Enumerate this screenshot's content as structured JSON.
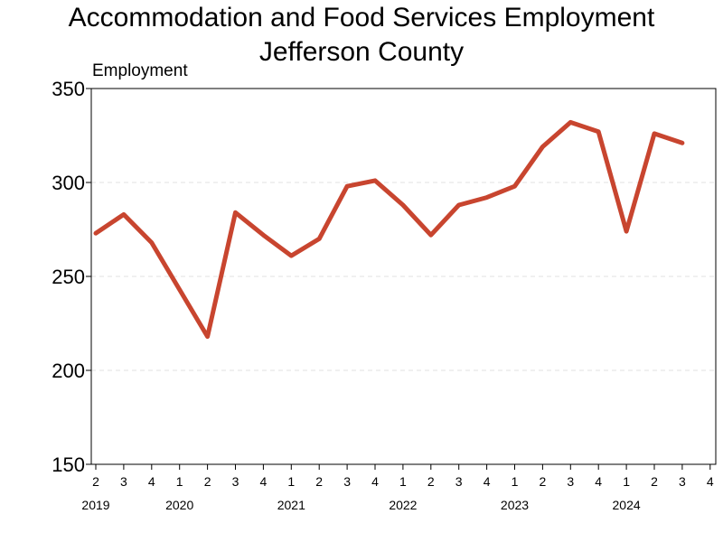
{
  "chart_data": {
    "type": "line",
    "title": "Accommodation and Food Services Employment",
    "subtitle": "Jefferson County",
    "ylabel": "Employment",
    "xlabel": "",
    "ylim": [
      150,
      350
    ],
    "yticks": [
      150,
      200,
      250,
      300,
      350
    ],
    "grid": "horizontal-dashed",
    "quarter_ticks": [
      "2",
      "3",
      "4",
      "1",
      "2",
      "3",
      "4",
      "1",
      "2",
      "3",
      "4",
      "1",
      "2",
      "3",
      "4",
      "1",
      "2",
      "3",
      "4",
      "1",
      "2",
      "3",
      "4"
    ],
    "year_labels": [
      {
        "year": "2019",
        "tick_index": 0
      },
      {
        "year": "2020",
        "tick_index": 3
      },
      {
        "year": "2021",
        "tick_index": 7
      },
      {
        "year": "2022",
        "tick_index": 11
      },
      {
        "year": "2023",
        "tick_index": 15
      },
      {
        "year": "2024",
        "tick_index": 19
      }
    ],
    "series": [
      {
        "color": "#c8452f",
        "x": [
          "2019Q2",
          "2019Q3",
          "2019Q4",
          "2020Q1",
          "2020Q2",
          "2020Q3",
          "2020Q4",
          "2021Q1",
          "2021Q2",
          "2021Q3",
          "2021Q4",
          "2022Q1",
          "2022Q2",
          "2022Q3",
          "2022Q4",
          "2023Q1",
          "2023Q2",
          "2023Q3",
          "2023Q4",
          "2024Q1",
          "2024Q2",
          "2024Q3"
        ],
        "values": [
          273,
          283,
          268,
          243,
          218,
          284,
          272,
          261,
          270,
          298,
          301,
          288,
          272,
          288,
          292,
          298,
          319,
          332,
          327,
          274,
          326,
          321
        ]
      }
    ]
  }
}
